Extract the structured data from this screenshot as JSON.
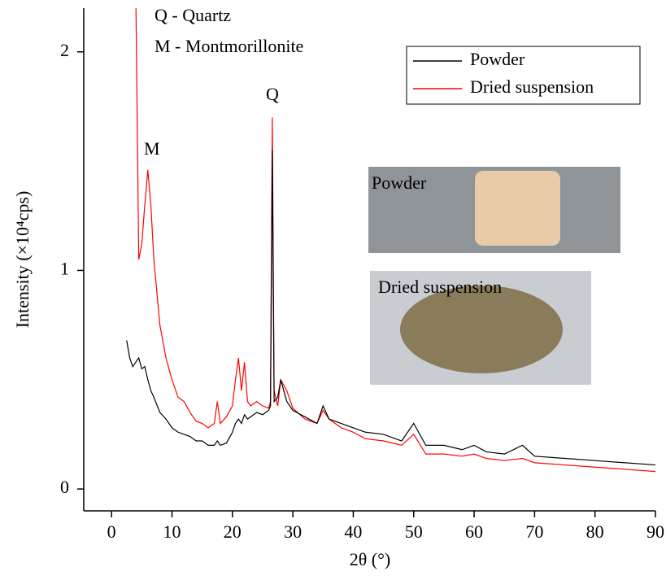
{
  "chart_data": {
    "type": "line",
    "xlabel": "2θ (°)",
    "ylabel": "Intensity (×10⁴cps)",
    "xlim": [
      -4.6,
      90
    ],
    "ylim": [
      -0.1,
      2.2
    ],
    "xticks": [
      0,
      10,
      20,
      30,
      40,
      50,
      60,
      70,
      80,
      90
    ],
    "yticks": [
      0,
      1,
      2
    ],
    "legend": "upper right",
    "annotations": [
      "Q - Quartz",
      "M - Montmorillonite",
      "Q",
      "M",
      "Powder",
      "Dried suspension"
    ],
    "x": [
      2.5,
      3,
      3.5,
      4,
      4.5,
      5,
      5.5,
      6,
      6.5,
      7,
      8,
      9,
      10,
      11,
      12,
      13,
      14,
      15,
      16,
      17,
      17.5,
      18,
      19,
      20,
      20.5,
      21,
      21.5,
      22,
      22.5,
      23,
      24,
      25,
      26,
      26.3,
      26.6,
      26.9,
      27.5,
      28,
      29,
      30,
      32,
      34,
      35,
      36,
      38,
      40,
      42,
      45,
      48,
      50,
      52,
      55,
      58,
      60,
      62,
      65,
      68,
      70,
      75,
      80,
      85,
      90
    ],
    "series": [
      {
        "name": "Dried suspension",
        "color": "#ff0000",
        "values": [
          null,
          null,
          null,
          2.3,
          1.05,
          1.12,
          1.3,
          1.46,
          1.3,
          1.05,
          0.75,
          0.6,
          0.5,
          0.42,
          0.4,
          0.35,
          0.31,
          0.3,
          0.28,
          0.3,
          0.4,
          0.3,
          0.33,
          0.38,
          0.5,
          0.6,
          0.45,
          0.58,
          0.4,
          0.38,
          0.4,
          0.38,
          0.37,
          0.4,
          1.7,
          0.45,
          0.38,
          0.5,
          0.45,
          0.37,
          0.32,
          0.3,
          0.36,
          0.32,
          0.28,
          0.26,
          0.23,
          0.22,
          0.2,
          0.25,
          0.16,
          0.16,
          0.15,
          0.16,
          0.14,
          0.13,
          0.14,
          0.12,
          0.11,
          0.1,
          0.09,
          0.08
        ]
      },
      {
        "name": "Powder",
        "color": "#000000",
        "values": [
          0.68,
          0.6,
          0.56,
          0.58,
          0.6,
          0.55,
          0.56,
          0.5,
          0.45,
          0.42,
          0.35,
          0.32,
          0.28,
          0.26,
          0.25,
          0.24,
          0.22,
          0.22,
          0.2,
          0.2,
          0.22,
          0.2,
          0.21,
          0.26,
          0.3,
          0.32,
          0.3,
          0.34,
          0.32,
          0.33,
          0.35,
          0.34,
          0.36,
          0.38,
          1.55,
          0.4,
          0.42,
          0.5,
          0.4,
          0.36,
          0.33,
          0.3,
          0.38,
          0.32,
          0.3,
          0.28,
          0.26,
          0.25,
          0.22,
          0.3,
          0.2,
          0.2,
          0.18,
          0.2,
          0.17,
          0.16,
          0.2,
          0.15,
          0.14,
          0.13,
          0.12,
          0.11
        ]
      }
    ]
  }
}
